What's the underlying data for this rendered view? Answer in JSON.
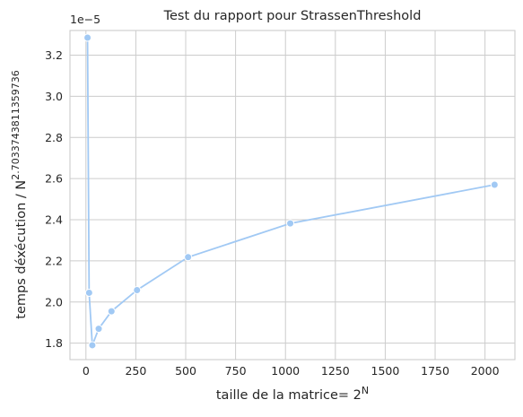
{
  "chart_data": {
    "type": "line",
    "title": "Test du rapport pour StrassenThreshold",
    "xlabel": "taille de la matrice",
    "xlabel_eq": "= 2",
    "xlabel_sup": "N",
    "ylabel": "temps déxécution / N",
    "ylabel_sup": "2.7033743811359736",
    "y_offset_text": "1e−5",
    "xlim": [
      -80,
      2150
    ],
    "ylim": [
      1.72,
      3.32
    ],
    "xticks": [
      0,
      250,
      500,
      750,
      1000,
      1250,
      1500,
      1750,
      2000
    ],
    "yticks": [
      1.8,
      2.0,
      2.2,
      2.4,
      2.6,
      2.8,
      3.0,
      3.2
    ],
    "ytick_labels": [
      "1.8",
      "2.0",
      "2.2",
      "2.4",
      "2.6",
      "2.8",
      "3.0",
      "3.2"
    ],
    "grid": true,
    "color": "#a1c9f4",
    "series": [
      {
        "x": [
          8,
          16,
          32,
          64,
          128,
          256,
          512,
          1024,
          2048
        ],
        "y": [
          3.285,
          2.045,
          1.79,
          1.87,
          1.955,
          2.058,
          2.218,
          2.382,
          2.57
        ]
      }
    ]
  }
}
